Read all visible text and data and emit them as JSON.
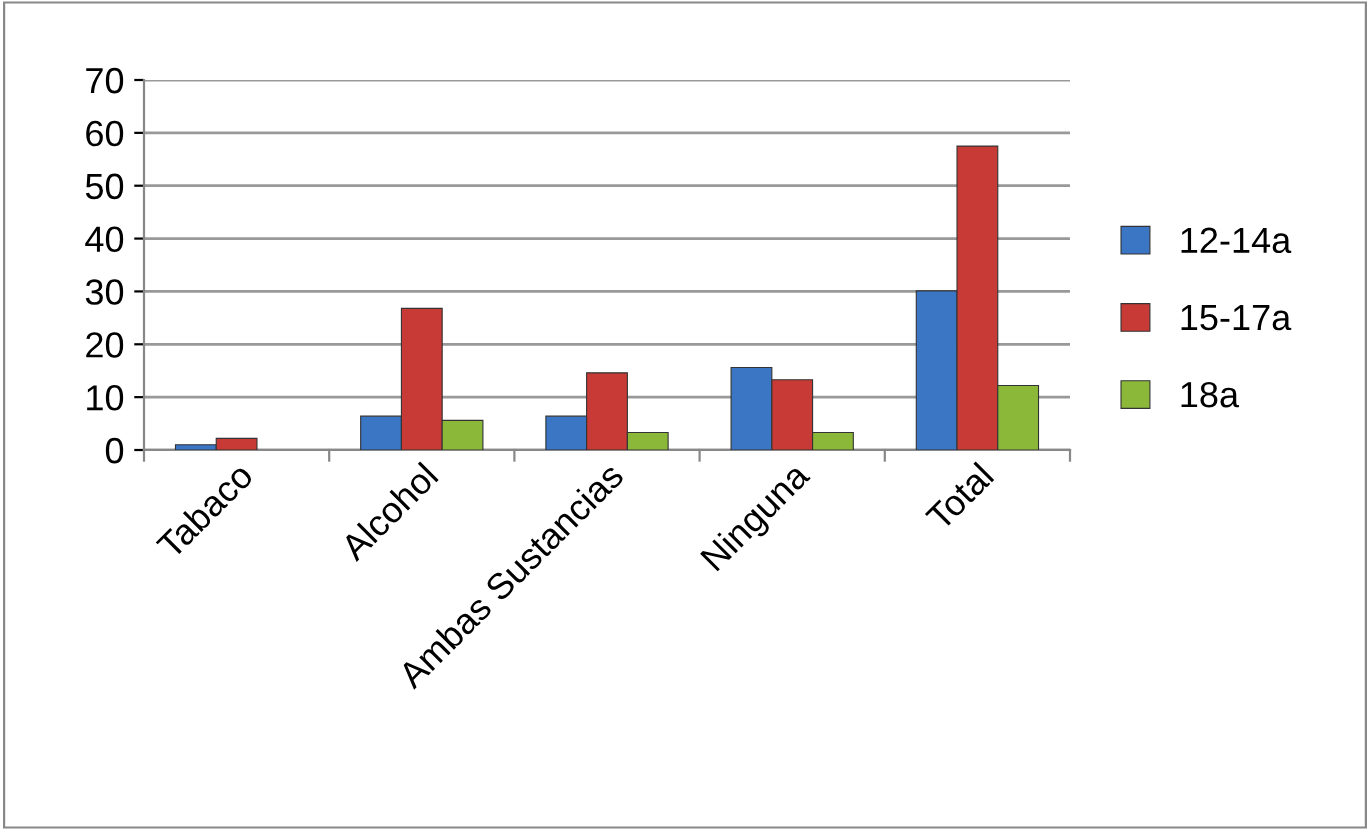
{
  "chart_data": {
    "type": "bar",
    "categories": [
      "Tabaco",
      "Alcohol",
      "Ambas Sustancias",
      "Ninguna",
      "Total"
    ],
    "series": [
      {
        "name": "12-14a",
        "color": "#3a76c4",
        "values": [
          1,
          6.4,
          6.4,
          15.6,
          30.1
        ]
      },
      {
        "name": "15-17a",
        "color": "#c83a36",
        "values": [
          2.2,
          26.8,
          14.6,
          13.3,
          57.5
        ]
      },
      {
        "name": "18a",
        "color": "#8cb83a",
        "values": [
          null,
          5.6,
          3.3,
          3.3,
          12.2
        ]
      }
    ],
    "ylim": [
      0,
      70
    ],
    "yticks": [
      0,
      10,
      20,
      30,
      40,
      50,
      60,
      70
    ],
    "grid": "y",
    "legend": "right"
  }
}
